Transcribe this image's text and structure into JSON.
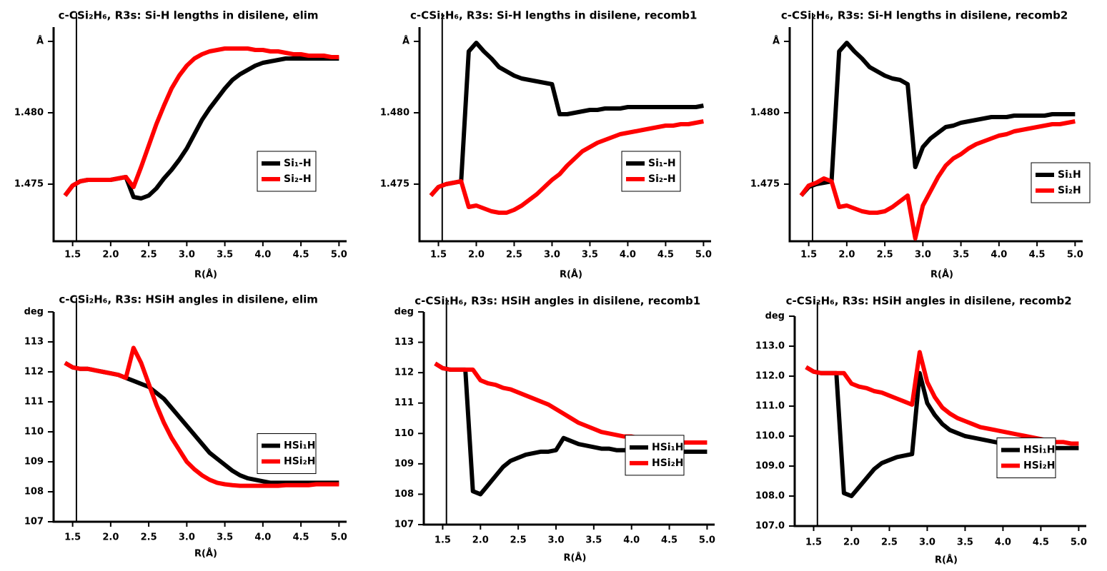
{
  "chart_data": [
    {
      "type": "line",
      "title": "c-CSi₂H₆, R3s: Si-H lengths in disilene, elim",
      "xlabel": "R(Å)",
      "vline": 1.55,
      "legend": "center right",
      "xlim": [
        1.25,
        5.1
      ],
      "ylim": [
        1.471,
        1.486
      ],
      "xticks": [
        1.5,
        {
          "value": 2,
          "label": "2.0"
        },
        2.5,
        {
          "value": 3,
          "label": "3.0"
        },
        3.5,
        {
          "value": 4,
          "label": "4.0"
        },
        4.5,
        {
          "value": 5,
          "label": "5.0"
        }
      ],
      "yticks": [
        1.475,
        {
          "value": 1.48,
          "label": "1.480"
        },
        {
          "value": 1.485,
          "label": "Å"
        }
      ],
      "x": [
        1.4,
        1.5,
        1.6,
        1.7,
        1.8,
        1.9,
        2.0,
        2.1,
        2.2,
        2.3,
        2.4,
        2.5,
        2.6,
        2.7,
        2.8,
        2.9,
        3.0,
        3.1,
        3.2,
        3.3,
        3.4,
        3.5,
        3.6,
        3.7,
        3.8,
        3.9,
        4.0,
        4.1,
        4.2,
        4.3,
        4.4,
        4.5,
        4.6,
        4.7,
        4.8,
        4.9,
        5.0
      ],
      "series": [
        {
          "name": "Si₁-H",
          "color": "#000000",
          "values": [
            1.4742,
            1.4749,
            1.4752,
            1.4753,
            1.4753,
            1.4753,
            1.4753,
            1.4754,
            1.4755,
            1.4741,
            1.474,
            1.4742,
            1.4747,
            1.4754,
            1.476,
            1.4767,
            1.4775,
            1.4785,
            1.4795,
            1.4803,
            1.481,
            1.4817,
            1.4823,
            1.4827,
            1.483,
            1.4833,
            1.4835,
            1.4836,
            1.4837,
            1.4838,
            1.4838,
            1.4838,
            1.4838,
            1.4838,
            1.4838,
            1.4838,
            1.4838
          ]
        },
        {
          "name": "Si₂-H",
          "color": "#ff0000",
          "values": [
            1.4742,
            1.4749,
            1.4752,
            1.4753,
            1.4753,
            1.4753,
            1.4753,
            1.4754,
            1.4755,
            1.4748,
            1.4762,
            1.4777,
            1.4792,
            1.4805,
            1.4817,
            1.4826,
            1.4833,
            1.4838,
            1.4841,
            1.4843,
            1.4844,
            1.4845,
            1.4845,
            1.4845,
            1.4845,
            1.4844,
            1.4844,
            1.4843,
            1.4843,
            1.4842,
            1.4841,
            1.4841,
            1.484,
            1.484,
            1.484,
            1.4839,
            1.4839
          ]
        }
      ]
    },
    {
      "type": "line",
      "title": "c-CSi₂H₆, R3s: Si-H lengths in disilene, recomb1",
      "xlabel": "R(Å)",
      "vline": 1.55,
      "legend": "center right",
      "xlim": [
        1.25,
        5.1
      ],
      "ylim": [
        1.471,
        1.486
      ],
      "xticks": [
        1.5,
        {
          "value": 2,
          "label": "2.0"
        },
        2.5,
        {
          "value": 3,
          "label": "3.0"
        },
        3.5,
        {
          "value": 4,
          "label": "4.0"
        },
        4.5,
        {
          "value": 5,
          "label": "5.0"
        }
      ],
      "yticks": [
        1.475,
        {
          "value": 1.48,
          "label": "1.480"
        },
        {
          "value": 1.485,
          "label": "Å"
        }
      ],
      "x": [
        1.4,
        1.5,
        1.6,
        1.7,
        1.8,
        1.9,
        2.0,
        2.1,
        2.2,
        2.3,
        2.4,
        2.5,
        2.6,
        2.7,
        2.8,
        2.9,
        3.0,
        3.1,
        3.2,
        3.3,
        3.4,
        3.5,
        3.6,
        3.7,
        3.8,
        3.9,
        4.0,
        4.1,
        4.2,
        4.3,
        4.4,
        4.5,
        4.6,
        4.7,
        4.8,
        4.9,
        5.0
      ],
      "series": [
        {
          "name": "Si₁-H",
          "color": "#000000",
          "values": [
            1.4742,
            1.4748,
            1.475,
            1.4751,
            1.4752,
            1.4843,
            1.4849,
            1.4843,
            1.4838,
            1.4832,
            1.4829,
            1.4826,
            1.4824,
            1.4823,
            1.4822,
            1.4821,
            1.482,
            1.4799,
            1.4799,
            1.48,
            1.4801,
            1.4802,
            1.4802,
            1.4803,
            1.4803,
            1.4803,
            1.4804,
            1.4804,
            1.4804,
            1.4804,
            1.4804,
            1.4804,
            1.4804,
            1.4804,
            1.4804,
            1.4804,
            1.4805
          ]
        },
        {
          "name": "Si₂-H",
          "color": "#ff0000",
          "values": [
            1.4742,
            1.4748,
            1.475,
            1.4751,
            1.4752,
            1.4734,
            1.4735,
            1.4733,
            1.4731,
            1.473,
            1.473,
            1.4732,
            1.4735,
            1.4739,
            1.4743,
            1.4748,
            1.4753,
            1.4757,
            1.4763,
            1.4768,
            1.4773,
            1.4776,
            1.4779,
            1.4781,
            1.4783,
            1.4785,
            1.4786,
            1.4787,
            1.4788,
            1.4789,
            1.479,
            1.4791,
            1.4791,
            1.4792,
            1.4792,
            1.4793,
            1.4794
          ]
        }
      ]
    },
    {
      "type": "line",
      "title": "c-CSi₂H₆, R3s: Si-H lengths in disilene, recomb2",
      "xlabel": "R(Å)",
      "vline": 1.55,
      "legend": "lower right",
      "xlim": [
        1.25,
        5.1
      ],
      "ylim": [
        1.471,
        1.486
      ],
      "xticks": [
        1.5,
        {
          "value": 2,
          "label": "2.0"
        },
        2.5,
        {
          "value": 3,
          "label": "3.0"
        },
        3.5,
        {
          "value": 4,
          "label": "4.0"
        },
        4.5,
        {
          "value": 5,
          "label": "5.0"
        }
      ],
      "yticks": [
        1.475,
        {
          "value": 1.48,
          "label": "1.480"
        },
        {
          "value": 1.485,
          "label": "Å"
        }
      ],
      "x": [
        1.4,
        1.5,
        1.6,
        1.7,
        1.8,
        1.9,
        2.0,
        2.1,
        2.2,
        2.3,
        2.4,
        2.5,
        2.6,
        2.7,
        2.8,
        2.9,
        3.0,
        3.1,
        3.2,
        3.3,
        3.4,
        3.5,
        3.6,
        3.7,
        3.8,
        3.9,
        4.0,
        4.1,
        4.2,
        4.3,
        4.4,
        4.5,
        4.6,
        4.7,
        4.8,
        4.9,
        5.0
      ],
      "series": [
        {
          "name": "Si₁H",
          "color": "#000000",
          "values": [
            1.4742,
            1.4748,
            1.475,
            1.4751,
            1.4752,
            1.4843,
            1.4849,
            1.4843,
            1.4838,
            1.4832,
            1.4829,
            1.4826,
            1.4824,
            1.4823,
            1.482,
            1.4762,
            1.4776,
            1.4782,
            1.4786,
            1.479,
            1.4791,
            1.4793,
            1.4794,
            1.4795,
            1.4796,
            1.4797,
            1.4797,
            1.4797,
            1.4798,
            1.4798,
            1.4798,
            1.4798,
            1.4798,
            1.4799,
            1.4799,
            1.4799,
            1.4799
          ]
        },
        {
          "name": "Si₂H",
          "color": "#ff0000",
          "values": [
            1.4742,
            1.4749,
            1.4751,
            1.4754,
            1.4752,
            1.4734,
            1.4735,
            1.4733,
            1.4731,
            1.473,
            1.473,
            1.4731,
            1.4734,
            1.4738,
            1.4742,
            1.4712,
            1.4735,
            1.4745,
            1.4755,
            1.4763,
            1.4768,
            1.4771,
            1.4775,
            1.4778,
            1.478,
            1.4782,
            1.4784,
            1.4785,
            1.4787,
            1.4788,
            1.4789,
            1.479,
            1.4791,
            1.4792,
            1.4792,
            1.4793,
            1.4794
          ]
        }
      ]
    },
    {
      "type": "line",
      "title": "c-CSi₂H₆, R3s: HSiH angles in disilene, elim",
      "xlabel": "R(Å)",
      "vline": 1.55,
      "legend": "center right",
      "xlim": [
        1.25,
        5.1
      ],
      "ylim": [
        107,
        114
      ],
      "xticks": [
        1.5,
        {
          "value": 2,
          "label": "2.0"
        },
        2.5,
        {
          "value": 3,
          "label": "3.0"
        },
        3.5,
        {
          "value": 4,
          "label": "4.0"
        },
        4.5,
        {
          "value": 5,
          "label": "5.0"
        }
      ],
      "yticks": [
        107,
        108,
        109,
        110,
        111,
        112,
        113,
        {
          "value": 114,
          "label": "deg"
        }
      ],
      "x": [
        1.4,
        1.5,
        1.6,
        1.7,
        1.8,
        1.9,
        2.0,
        2.1,
        2.2,
        2.3,
        2.4,
        2.5,
        2.6,
        2.7,
        2.8,
        2.9,
        3.0,
        3.1,
        3.2,
        3.3,
        3.4,
        3.5,
        3.6,
        3.7,
        3.8,
        3.9,
        4.0,
        4.1,
        4.2,
        4.3,
        4.4,
        4.5,
        4.6,
        4.7,
        4.8,
        4.9,
        5.0
      ],
      "series": [
        {
          "name": "HSi₁H",
          "color": "#000000",
          "values": [
            112.3,
            112.15,
            112.1,
            112.1,
            112.05,
            112.0,
            111.95,
            111.9,
            111.8,
            111.7,
            111.6,
            111.5,
            111.3,
            111.1,
            110.8,
            110.5,
            110.2,
            109.9,
            109.6,
            109.3,
            109.1,
            108.9,
            108.7,
            108.55,
            108.45,
            108.4,
            108.35,
            108.3,
            108.3,
            108.3,
            108.3,
            108.3,
            108.3,
            108.3,
            108.3,
            108.3,
            108.3
          ]
        },
        {
          "name": "HSi₂H",
          "color": "#ff0000",
          "values": [
            112.3,
            112.15,
            112.1,
            112.1,
            112.05,
            112.0,
            111.95,
            111.9,
            111.8,
            112.8,
            112.3,
            111.6,
            110.9,
            110.3,
            109.8,
            109.4,
            109.0,
            108.75,
            108.55,
            108.4,
            108.3,
            108.25,
            108.22,
            108.2,
            108.2,
            108.2,
            108.2,
            108.2,
            108.2,
            108.22,
            108.22,
            108.22,
            108.22,
            108.25,
            108.25,
            108.25,
            108.25
          ]
        }
      ]
    },
    {
      "type": "line",
      "title": "c-CSi₂H₆, R3s: HSiH angles in disilene, recomb1",
      "xlabel": "R(Å)",
      "vline": 1.55,
      "legend": "center right",
      "xlim": [
        1.25,
        5.1
      ],
      "ylim": [
        107,
        114
      ],
      "xticks": [
        1.5,
        {
          "value": 2,
          "label": "2.0"
        },
        2.5,
        {
          "value": 3,
          "label": "3.0"
        },
        3.5,
        {
          "value": 4,
          "label": "4.0"
        },
        4.5,
        {
          "value": 5,
          "label": "5.0"
        }
      ],
      "yticks": [
        107,
        108,
        109,
        110,
        111,
        112,
        113,
        {
          "value": 114,
          "label": "deg"
        }
      ],
      "x": [
        1.4,
        1.5,
        1.6,
        1.7,
        1.8,
        1.9,
        2.0,
        2.1,
        2.2,
        2.3,
        2.4,
        2.5,
        2.6,
        2.7,
        2.8,
        2.9,
        3.0,
        3.1,
        3.2,
        3.3,
        3.4,
        3.5,
        3.6,
        3.7,
        3.8,
        3.9,
        4.0,
        4.1,
        4.2,
        4.3,
        4.4,
        4.5,
        4.6,
        4.7,
        4.8,
        4.9,
        5.0
      ],
      "series": [
        {
          "name": "HSi₁H",
          "color": "#000000",
          "values": [
            112.3,
            112.15,
            112.1,
            112.1,
            112.1,
            108.1,
            108.0,
            108.3,
            108.6,
            108.9,
            109.1,
            109.2,
            109.3,
            109.35,
            109.4,
            109.4,
            109.45,
            109.85,
            109.75,
            109.65,
            109.6,
            109.55,
            109.5,
            109.5,
            109.45,
            109.45,
            109.45,
            109.4,
            109.4,
            109.4,
            109.4,
            109.4,
            109.4,
            109.4,
            109.4,
            109.4,
            109.4
          ]
        },
        {
          "name": "HSi₂H",
          "color": "#ff0000",
          "values": [
            112.3,
            112.15,
            112.1,
            112.1,
            112.1,
            112.1,
            111.75,
            111.65,
            111.6,
            111.5,
            111.45,
            111.35,
            111.25,
            111.15,
            111.05,
            110.95,
            110.8,
            110.65,
            110.5,
            110.35,
            110.25,
            110.15,
            110.05,
            110.0,
            109.95,
            109.9,
            109.9,
            109.85,
            109.85,
            109.8,
            109.8,
            109.75,
            109.75,
            109.7,
            109.7,
            109.7,
            109.7
          ]
        }
      ]
    },
    {
      "type": "line",
      "title": "c-CSi₂H₆, R3s: HSiH angles in disilene, recomb2",
      "xlabel": "R(Å)",
      "vline": 1.55,
      "legend": "center right",
      "xlim": [
        1.25,
        5.1
      ],
      "ylim": [
        107,
        114
      ],
      "xticks": [
        1.5,
        {
          "value": 2,
          "label": "2.0"
        },
        2.5,
        {
          "value": 3,
          "label": "3.0"
        },
        3.5,
        {
          "value": 4,
          "label": "4.0"
        },
        4.5,
        {
          "value": 5,
          "label": "5.0"
        }
      ],
      "yticks": [
        {
          "value": 107,
          "label": "107.0"
        },
        {
          "value": 108,
          "label": "108.0"
        },
        {
          "value": 109,
          "label": "109.0"
        },
        {
          "value": 110,
          "label": "110.0"
        },
        {
          "value": 111,
          "label": "111.0"
        },
        {
          "value": 112,
          "label": "112.0"
        },
        {
          "value": 113,
          "label": "113.0"
        },
        {
          "value": 114,
          "label": "deg"
        }
      ],
      "x": [
        1.4,
        1.5,
        1.6,
        1.7,
        1.8,
        1.9,
        2.0,
        2.1,
        2.2,
        2.3,
        2.4,
        2.5,
        2.6,
        2.7,
        2.8,
        2.9,
        3.0,
        3.1,
        3.2,
        3.3,
        3.4,
        3.5,
        3.6,
        3.7,
        3.8,
        3.9,
        4.0,
        4.1,
        4.2,
        4.3,
        4.4,
        4.5,
        4.6,
        4.7,
        4.8,
        4.9,
        5.0
      ],
      "series": [
        {
          "name": "HSi₁H",
          "color": "#000000",
          "values": [
            112.3,
            112.15,
            112.1,
            112.1,
            112.1,
            108.1,
            108.0,
            108.3,
            108.6,
            108.9,
            109.1,
            109.2,
            109.3,
            109.35,
            109.4,
            112.1,
            111.1,
            110.7,
            110.4,
            110.2,
            110.1,
            110.0,
            109.95,
            109.9,
            109.85,
            109.8,
            109.75,
            109.75,
            109.7,
            109.7,
            109.7,
            109.65,
            109.65,
            109.6,
            109.6,
            109.6,
            109.6
          ]
        },
        {
          "name": "HSi₂H",
          "color": "#ff0000",
          "values": [
            112.3,
            112.15,
            112.1,
            112.1,
            112.1,
            112.1,
            111.75,
            111.65,
            111.6,
            111.5,
            111.45,
            111.35,
            111.25,
            111.15,
            111.05,
            112.8,
            111.8,
            111.3,
            110.95,
            110.75,
            110.6,
            110.5,
            110.4,
            110.3,
            110.25,
            110.2,
            110.15,
            110.1,
            110.05,
            110.0,
            109.95,
            109.9,
            109.85,
            109.8,
            109.8,
            109.75,
            109.75
          ]
        }
      ]
    }
  ]
}
